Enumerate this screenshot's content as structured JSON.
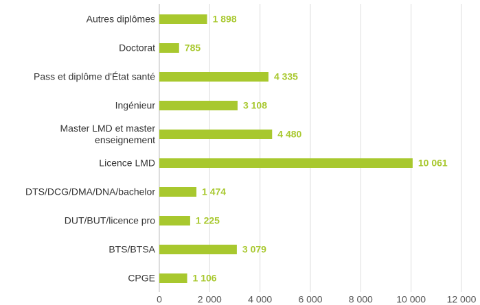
{
  "chart_data": {
    "type": "bar",
    "orientation": "horizontal",
    "categories": [
      "Autres diplômes",
      "Doctorat",
      "Pass et diplôme d'État santé",
      "Ingénieur",
      "Master LMD et master enseignement",
      "Licence LMD",
      "DTS/DCG/DMA/DNA/bachelor",
      "DUT/BUT/licence pro",
      "BTS/BTSA",
      "CPGE"
    ],
    "values": [
      1898,
      785,
      4335,
      3108,
      4480,
      10061,
      1474,
      1225,
      3079,
      1106
    ],
    "value_labels": [
      "1 898",
      "785",
      "4 335",
      "3 108",
      "4 480",
      "10 061",
      "1 474",
      "1 225",
      "3 079",
      "1 106"
    ],
    "color": "#a8c82e",
    "xlim": [
      0,
      12000
    ],
    "xticks": [
      0,
      {
        "value": 2000,
        "label": "2 000"
      },
      {
        "value": 4000,
        "label": "4 000"
      },
      {
        "value": 6000,
        "label": "6 000"
      },
      {
        "value": 8000,
        "label": "8 000"
      },
      {
        "value": 10000,
        "label": "10 000"
      },
      {
        "value": 12000,
        "label": "12 000"
      }
    ],
    "grid": true
  }
}
